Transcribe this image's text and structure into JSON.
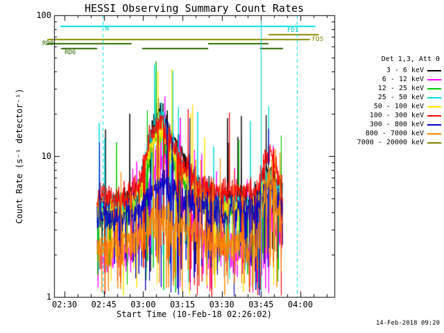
{
  "footer": {
    "timestamp": "14-Feb-2018 09:20"
  },
  "legend": {
    "title": "Det 1,3, Att 0"
  },
  "chart_data": {
    "type": "line",
    "title": "HESSI Observing Summary Count Rates",
    "xlabel": "Start Time (10-Feb-18 02:26:02)",
    "ylabel": "Count Rate (s⁻¹ detector⁻¹)",
    "y_scale": "log",
    "ylim": [
      1,
      100
    ],
    "x_domain_minutes": [
      0,
      107
    ],
    "x_start_time": "02:26:02",
    "sample_range_minutes": [
      16.4,
      87.3
    ],
    "sample_step_minutes": 0.12,
    "x_ticks": [
      {
        "minute": 4,
        "label": "02:30"
      },
      {
        "minute": 19,
        "label": "02:45"
      },
      {
        "minute": 34,
        "label": "03:00"
      },
      {
        "minute": 49,
        "label": "03:15"
      },
      {
        "minute": 64,
        "label": "03:30"
      },
      {
        "minute": 79,
        "label": "03:45"
      },
      {
        "minute": 94,
        "label": "04:00"
      }
    ],
    "y_ticks": [
      {
        "value": 1,
        "label": "1"
      },
      {
        "value": 10,
        "label": "10"
      },
      {
        "value": 100,
        "label": "100"
      }
    ],
    "vlines": [
      {
        "minute": 18.5,
        "style": "dashed",
        "color": "#00dddd"
      },
      {
        "minute": 79.0,
        "style": "solid",
        "color": "#00cccc"
      },
      {
        "minute": 92.7,
        "style": "dashed",
        "color": "#00dddd"
      }
    ],
    "flags": [
      {
        "label": "N",
        "label_color": "#00cccc",
        "line_color": "#00e0e0",
        "y": 38,
        "label_minute": 19.5,
        "label_dy": -1,
        "segments": [
          [
            2.4,
            99.7
          ]
        ]
      },
      {
        "label": "FD1",
        "label_color": "#00cccc",
        "line_color": "#8a8a00",
        "y": 50,
        "label_minute": 89.0,
        "label_dy": -11,
        "segments": [
          [
            81.8,
            101.0
          ]
        ]
      },
      {
        "label": "FD5",
        "label_color": "#8a8a00",
        "line_color": "#8a8a00",
        "y": 57,
        "label_minute": 98.5,
        "label_dy": -5,
        "segments": [
          [
            -2.6,
            97.7
          ]
        ]
      },
      {
        "label": "RD0",
        "label_color": "#2d6a00",
        "line_color": "#2d6a00",
        "y": 63,
        "label_minute": -4.5,
        "label_dy": -5,
        "segments": [
          [
            -2.6,
            29.6
          ],
          [
            58.8,
            81.8
          ]
        ]
      },
      {
        "label": "RD6",
        "label_color": "#2d6a00",
        "line_color": "#2d6a00",
        "y": 70,
        "label_minute": 4.0,
        "label_dy": 1,
        "segments": [
          [
            2.6,
            16.4
          ],
          [
            33.6,
            58.8
          ],
          [
            78.6,
            87.4
          ]
        ]
      }
    ],
    "series": [
      {
        "name": "3 - 6 keV",
        "color": "#000000",
        "noise": 0.18,
        "drop": 0.03,
        "spike": 0.01,
        "envelope": [
          [
            16.4,
            4.5
          ],
          [
            25,
            4.8
          ],
          [
            30,
            5.2
          ],
          [
            33,
            6.5
          ],
          [
            36,
            11
          ],
          [
            38.5,
            18
          ],
          [
            40,
            21
          ],
          [
            41.5,
            20
          ],
          [
            43,
            17
          ],
          [
            46,
            13
          ],
          [
            50,
            9
          ],
          [
            55,
            6.5
          ],
          [
            60,
            5.5
          ],
          [
            65,
            5
          ],
          [
            70,
            5
          ],
          [
            75,
            5
          ],
          [
            78,
            5.5
          ],
          [
            80,
            7
          ],
          [
            82,
            7.5
          ],
          [
            84,
            6.5
          ],
          [
            87.3,
            5.5
          ]
        ]
      },
      {
        "name": "6 - 12 keV",
        "color": "#ff00ff",
        "noise": 0.26,
        "drop": 0.1,
        "spike": 0.03,
        "envelope": [
          [
            16.4,
            1.9
          ],
          [
            25,
            2.0
          ],
          [
            30,
            2.2
          ],
          [
            33,
            3
          ],
          [
            36,
            5.5
          ],
          [
            38.5,
            8.5
          ],
          [
            40,
            9.5
          ],
          [
            41.5,
            9
          ],
          [
            43,
            8
          ],
          [
            46,
            6
          ],
          [
            50,
            4
          ],
          [
            55,
            2.8
          ],
          [
            60,
            2.3
          ],
          [
            65,
            2.1
          ],
          [
            70,
            2.1
          ],
          [
            75,
            2.1
          ],
          [
            78,
            2.3
          ],
          [
            80,
            3.5
          ],
          [
            82,
            4
          ],
          [
            84,
            3.2
          ],
          [
            87.3,
            2.5
          ]
        ]
      },
      {
        "name": "12 - 25 keV",
        "color": "#00c800",
        "noise": 0.16,
        "drop": 0.06,
        "spike": 0.01,
        "envelope": [
          [
            16.4,
            3.8
          ],
          [
            25,
            4.0
          ],
          [
            30,
            4.3
          ],
          [
            33,
            5.5
          ],
          [
            36,
            9
          ],
          [
            38.5,
            12.5
          ],
          [
            40,
            13.5
          ],
          [
            41.5,
            13
          ],
          [
            43,
            11.5
          ],
          [
            46,
            9
          ],
          [
            50,
            6.5
          ],
          [
            55,
            5
          ],
          [
            60,
            4.4
          ],
          [
            65,
            4.1
          ],
          [
            70,
            4.1
          ],
          [
            75,
            4.1
          ],
          [
            78,
            4.5
          ],
          [
            80,
            6.5
          ],
          [
            82,
            7
          ],
          [
            84,
            5.5
          ],
          [
            87.3,
            4.5
          ]
        ]
      },
      {
        "name": "25 - 50 keV",
        "color": "#00dddd",
        "noise": 0.16,
        "drop": 0.04,
        "spike": 0.01,
        "envelope": [
          [
            16.4,
            4.3
          ],
          [
            25,
            4.5
          ],
          [
            30,
            5
          ],
          [
            33,
            6.5
          ],
          [
            36,
            12
          ],
          [
            38.5,
            17.5
          ],
          [
            40,
            20
          ],
          [
            41.5,
            19
          ],
          [
            43,
            16
          ],
          [
            46,
            11.5
          ],
          [
            50,
            8
          ],
          [
            55,
            5.8
          ],
          [
            60,
            5
          ],
          [
            65,
            4.7
          ],
          [
            70,
            4.7
          ],
          [
            75,
            4.7
          ],
          [
            78,
            5
          ],
          [
            80,
            6.5
          ],
          [
            82,
            7
          ],
          [
            84,
            6
          ],
          [
            87.3,
            5
          ]
        ]
      },
      {
        "name": "50 - 100 keV",
        "color": "#ffe300",
        "noise": 0.16,
        "drop": 0.05,
        "spike": 0.01,
        "envelope": [
          [
            16.4,
            4.0
          ],
          [
            25,
            4.2
          ],
          [
            30,
            4.6
          ],
          [
            33,
            6
          ],
          [
            36,
            10.5
          ],
          [
            38.5,
            14
          ],
          [
            40,
            15
          ],
          [
            41.5,
            14.5
          ],
          [
            43,
            12.5
          ],
          [
            46,
            9.5
          ],
          [
            50,
            7
          ],
          [
            55,
            5.2
          ],
          [
            60,
            4.6
          ],
          [
            65,
            4.3
          ],
          [
            70,
            4.3
          ],
          [
            75,
            4.3
          ],
          [
            78,
            4.6
          ],
          [
            80,
            6
          ],
          [
            82,
            6.2
          ],
          [
            84,
            5.2
          ],
          [
            87.3,
            4.5
          ]
        ]
      },
      {
        "name": "100 - 300 keV",
        "color": "#ff0000",
        "noise": 0.18,
        "drop": 0.06,
        "spike": 0.01,
        "envelope": [
          [
            16.4,
            5.0
          ],
          [
            25,
            5.2
          ],
          [
            30,
            5.6
          ],
          [
            33,
            7
          ],
          [
            36,
            12.5
          ],
          [
            38.5,
            16
          ],
          [
            40,
            17.5
          ],
          [
            41.5,
            17
          ],
          [
            43,
            14.5
          ],
          [
            46,
            11
          ],
          [
            50,
            8.5
          ],
          [
            55,
            6.5
          ],
          [
            60,
            5.8
          ],
          [
            65,
            5.6
          ],
          [
            70,
            5.6
          ],
          [
            75,
            5.6
          ],
          [
            78,
            6.2
          ],
          [
            80,
            9
          ],
          [
            82,
            10.5
          ],
          [
            84,
            9
          ],
          [
            87.3,
            5.5
          ]
        ]
      },
      {
        "name": "300 - 800 keV",
        "color": "#0000c8",
        "noise": 0.22,
        "drop": 0.08,
        "spike": 0.01,
        "envelope": [
          [
            16.4,
            3.6
          ],
          [
            25,
            3.7
          ],
          [
            30,
            3.9
          ],
          [
            33,
            4.3
          ],
          [
            36,
            5.4
          ],
          [
            40,
            6.5
          ],
          [
            43,
            6
          ],
          [
            46,
            5.5
          ],
          [
            50,
            5
          ],
          [
            55,
            4.4
          ],
          [
            60,
            4.1
          ],
          [
            65,
            4
          ],
          [
            70,
            4
          ],
          [
            75,
            4
          ],
          [
            78,
            4.3
          ],
          [
            80,
            5.5
          ],
          [
            82,
            6
          ],
          [
            84,
            5.2
          ],
          [
            87.3,
            4.2
          ]
        ]
      },
      {
        "name": "800 - 7000 keV",
        "color": "#ff8700",
        "noise": 0.26,
        "drop": 0.12,
        "spike": 0.02,
        "envelope": [
          [
            16.4,
            2.3
          ],
          [
            25,
            2.3
          ],
          [
            30,
            2.4
          ],
          [
            33,
            2.6
          ],
          [
            36,
            3.1
          ],
          [
            40,
            3.8
          ],
          [
            43,
            3.6
          ],
          [
            46,
            3.3
          ],
          [
            50,
            3
          ],
          [
            55,
            2.7
          ],
          [
            60,
            2.5
          ],
          [
            65,
            2.4
          ],
          [
            70,
            2.4
          ],
          [
            75,
            2.4
          ],
          [
            78,
            2.7
          ],
          [
            80,
            5
          ],
          [
            82,
            7.5
          ],
          [
            84,
            6
          ],
          [
            87.3,
            3
          ]
        ]
      },
      {
        "name": "7000 - 20000 keV",
        "color": "#808000",
        "noise": 0.2,
        "drop": 0.0,
        "spike": 0.0,
        "envelope": [
          [
            16.4,
            0.5
          ],
          [
            47.5,
            0.5
          ],
          [
            47.9,
            12
          ],
          [
            48.3,
            0.5
          ],
          [
            87.3,
            0.5
          ]
        ]
      }
    ]
  }
}
